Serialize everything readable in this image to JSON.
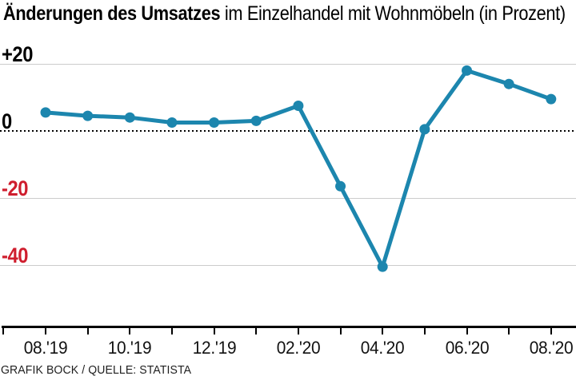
{
  "title": {
    "bold": "Änderungen des Umsatzes",
    "regular": " im Einzelhandel mit Wohnmöbeln (in Prozent)"
  },
  "footer": "GRAFIK BOCK / QUELLE: STATISTA",
  "colors": {
    "line": "#1c86ae",
    "grid": "#cccccc",
    "axis": "#000000",
    "positive_label": "#000000",
    "negative_label": "#cf1e2e",
    "tick_label": "#111111"
  },
  "chart_data": {
    "type": "line",
    "title": "Änderungen des Umsatzes im Einzelhandel mit Wohnmöbeln (in Prozent)",
    "categories": [
      "08.'19",
      "09.'19",
      "10.'19",
      "11.'19",
      "12.'19",
      "01.'20",
      "02.'20",
      "03.'20",
      "04.'20",
      "05.'20",
      "06.'20",
      "07.'20",
      "08.'20"
    ],
    "values": [
      5.5,
      4.5,
      4,
      2.5,
      2.5,
      3,
      7.5,
      -16.5,
      -40.5,
      0.5,
      18,
      14,
      9.5
    ],
    "x_tick_labels": [
      "08.'19",
      "10.'19",
      "12.'19",
      "02.'20",
      "04.'20",
      "06.'20",
      "08.'20"
    ],
    "y_ticks": [
      {
        "label": "+20",
        "value": 20,
        "negative": false
      },
      {
        "label": "0",
        "value": 0,
        "negative": false
      },
      {
        "label": "-20",
        "value": -20,
        "negative": true
      },
      {
        "label": "-40",
        "value": -40,
        "negative": true
      }
    ],
    "ylim": [
      -45,
      22
    ],
    "grid": "horizontal-solid-except-dotted-zero",
    "legend": "none"
  }
}
